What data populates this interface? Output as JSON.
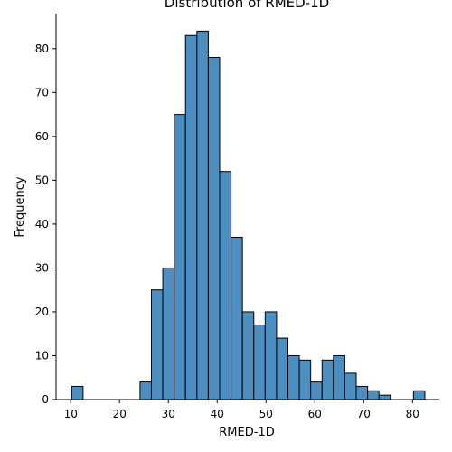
{
  "chart_data": {
    "type": "bar",
    "title": "Distribution of RMED-1D",
    "xlabel": "RMED-1D",
    "ylabel": "Frequency",
    "xlim": [
      7.0,
      85.5
    ],
    "ylim": [
      0,
      88
    ],
    "xticks": [
      10,
      20,
      30,
      40,
      50,
      60,
      70,
      80
    ],
    "yticks": [
      0,
      10,
      20,
      30,
      40,
      50,
      60,
      70,
      80
    ],
    "bin_width": 2.33,
    "bins": [
      {
        "x0": 10.2,
        "x1": 12.53,
        "count": 3
      },
      {
        "x0": 24.2,
        "x1": 26.53,
        "count": 4
      },
      {
        "x0": 26.53,
        "x1": 28.86,
        "count": 25
      },
      {
        "x0": 28.86,
        "x1": 31.19,
        "count": 30
      },
      {
        "x0": 31.19,
        "x1": 33.52,
        "count": 65
      },
      {
        "x0": 33.52,
        "x1": 35.85,
        "count": 83
      },
      {
        "x0": 35.85,
        "x1": 38.18,
        "count": 84
      },
      {
        "x0": 38.18,
        "x1": 40.51,
        "count": 78
      },
      {
        "x0": 40.51,
        "x1": 42.84,
        "count": 52
      },
      {
        "x0": 42.84,
        "x1": 45.17,
        "count": 37
      },
      {
        "x0": 45.17,
        "x1": 47.5,
        "count": 20
      },
      {
        "x0": 47.5,
        "x1": 49.83,
        "count": 17
      },
      {
        "x0": 49.83,
        "x1": 52.16,
        "count": 20
      },
      {
        "x0": 52.16,
        "x1": 54.49,
        "count": 14
      },
      {
        "x0": 54.49,
        "x1": 56.82,
        "count": 10
      },
      {
        "x0": 56.82,
        "x1": 59.15,
        "count": 9
      },
      {
        "x0": 59.15,
        "x1": 61.48,
        "count": 4
      },
      {
        "x0": 61.48,
        "x1": 63.81,
        "count": 9
      },
      {
        "x0": 63.81,
        "x1": 66.14,
        "count": 10
      },
      {
        "x0": 66.14,
        "x1": 68.47,
        "count": 6
      },
      {
        "x0": 68.47,
        "x1": 70.8,
        "count": 3
      },
      {
        "x0": 70.8,
        "x1": 73.13,
        "count": 2
      },
      {
        "x0": 73.13,
        "x1": 75.46,
        "count": 1
      },
      {
        "x0": 80.2,
        "x1": 82.53,
        "count": 2
      }
    ],
    "bar_color": "#4c8ebf",
    "bar_edge_color": "#000000",
    "grid": false,
    "legend": "none"
  }
}
